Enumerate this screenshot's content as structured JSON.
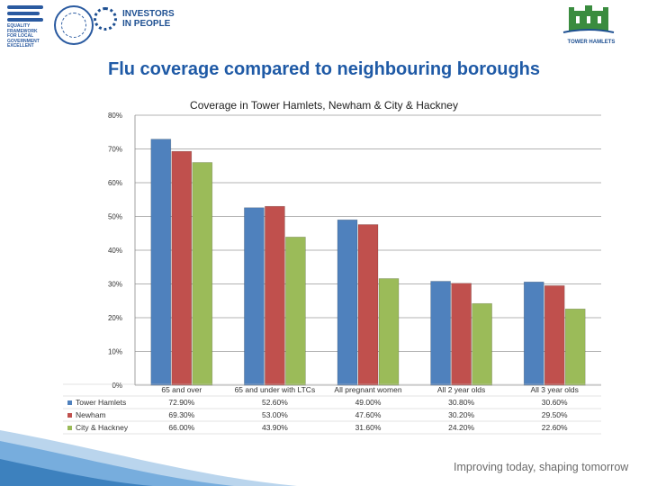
{
  "logos": {
    "equality_text": "EQUALITY\nFRAMEWORK\nFOR LOCAL\nGOVERNMENT\nEXCELLENT",
    "investors_text": "INVESTORS\nIN PEOPLE",
    "tower_hamlets_text": "TOWER HAMLETS"
  },
  "slide": {
    "title": "Flu coverage compared to neighbouring  boroughs",
    "tagline": "Improving today, shaping tomorrow"
  },
  "colors": {
    "tower_hamlets": "#4f81bd",
    "newham": "#c0504d",
    "city_hackney": "#9bbb59",
    "title": "#1f5aa6"
  },
  "chart_data": {
    "type": "bar",
    "title": "Coverage in Tower Hamlets, Newham & City & Hackney",
    "categories": [
      "65 and over",
      "65 and under with LTCs",
      "All pregnant women",
      "All 2 year olds",
      "All 3 year olds"
    ],
    "series": [
      {
        "name": "Tower Hamlets",
        "values": [
          72.9,
          52.6,
          49.0,
          30.8,
          30.6
        ],
        "labels": [
          "72.90%",
          "52.60%",
          "49.00%",
          "30.80%",
          "30.60%"
        ]
      },
      {
        "name": "Newham",
        "values": [
          69.3,
          53.0,
          47.6,
          30.2,
          29.5
        ],
        "labels": [
          "69.30%",
          "53.00%",
          "47.60%",
          "30.20%",
          "29.50%"
        ]
      },
      {
        "name": "City & Hackney",
        "values": [
          66.0,
          43.9,
          31.6,
          24.2,
          22.6
        ],
        "labels": [
          "66.00%",
          "43.90%",
          "31.60%",
          "24.20%",
          "22.60%"
        ]
      }
    ],
    "ylim": [
      0,
      80
    ],
    "yticks": [
      "0%",
      "10%",
      "20%",
      "30%",
      "40%",
      "50%",
      "60%",
      "70%",
      "80%"
    ],
    "gridlines": true,
    "legend": "data-table-left"
  }
}
